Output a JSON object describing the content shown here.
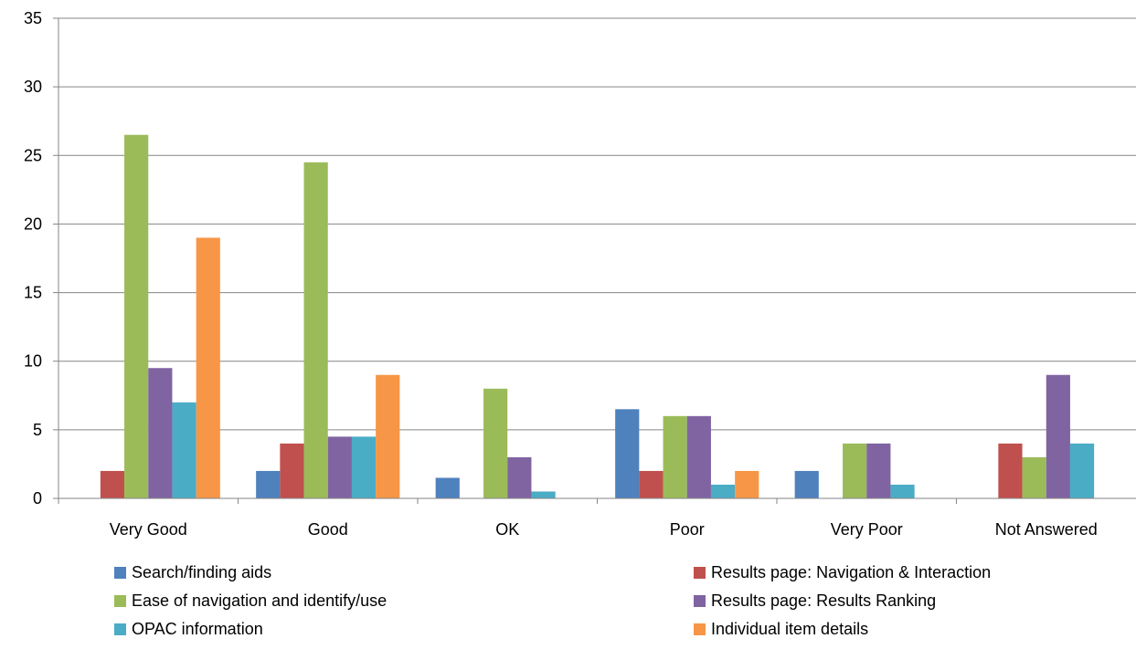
{
  "chart_data": {
    "type": "bar",
    "title": "",
    "xlabel": "",
    "ylabel": "",
    "categories": [
      "Very Good",
      "Good",
      "OK",
      "Poor",
      "Very Poor",
      "Not Answered"
    ],
    "ylim": [
      0,
      35
    ],
    "yticks": [
      0,
      5,
      10,
      15,
      20,
      25,
      30,
      35
    ],
    "grid": "horizontal",
    "legend": "bottom",
    "series": [
      {
        "name": "Search/finding aids",
        "color": "#4F81BD",
        "values": [
          0,
          2,
          1.5,
          6.5,
          2,
          0
        ]
      },
      {
        "name": "Results page: Navigation & Interaction",
        "color": "#C0504D",
        "values": [
          2,
          4,
          0,
          2,
          0,
          4
        ]
      },
      {
        "name": "Ease of navigation and identify/use",
        "color": "#9BBB59",
        "values": [
          26.5,
          24.5,
          8,
          6,
          4,
          3
        ]
      },
      {
        "name": "Results page: Results Ranking",
        "color": "#8064A2",
        "values": [
          9.5,
          4.5,
          3,
          6,
          4,
          9
        ]
      },
      {
        "name": "OPAC information",
        "color": "#4BACC6",
        "values": [
          7,
          4.5,
          0.5,
          1,
          1,
          4
        ]
      },
      {
        "name": "Individual item details",
        "color": "#F79646",
        "values": [
          19,
          9,
          0,
          2,
          0,
          0
        ]
      }
    ]
  }
}
